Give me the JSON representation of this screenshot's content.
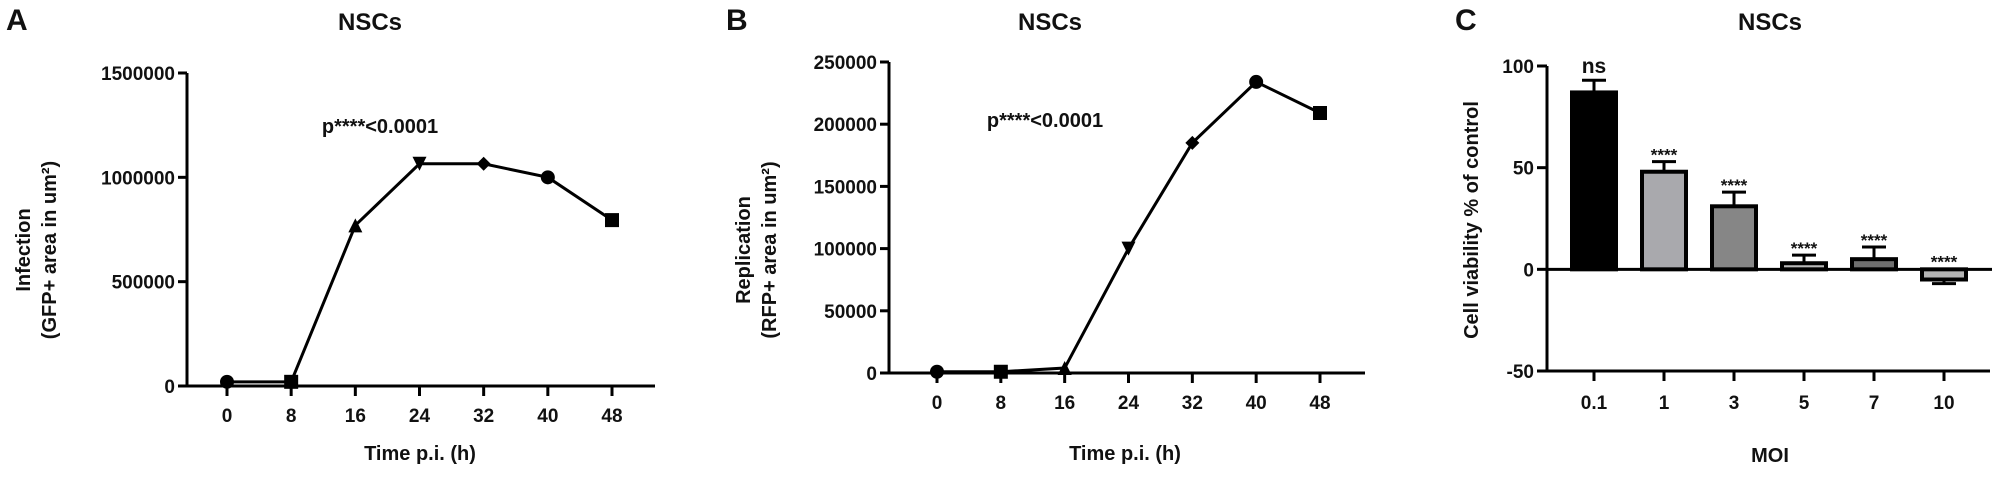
{
  "panels": [
    {
      "letter": "A",
      "title": "NSCs",
      "ylabel_line1": "Infection",
      "ylabel_line2": "(GFP+ area in um²)",
      "xlabel": "Time p.i. (h)",
      "annotation": "p****<0.0001",
      "yticks": [
        "0",
        "500000",
        "1000000",
        "1500000"
      ],
      "xticks": [
        "0",
        "8",
        "16",
        "24",
        "32",
        "40",
        "48"
      ]
    },
    {
      "letter": "B",
      "title": "NSCs",
      "ylabel_line1": "Replication",
      "ylabel_line2": "(RFP+ area in um²)",
      "xlabel": "Time p.i. (h)",
      "annotation": "p****<0.0001",
      "yticks": [
        "0",
        "50000",
        "100000",
        "150000",
        "200000",
        "250000"
      ],
      "xticks": [
        "0",
        "8",
        "16",
        "24",
        "32",
        "40",
        "48"
      ]
    },
    {
      "letter": "C",
      "title": "NSCs",
      "ylabel": "Cell viability % of control",
      "xlabel": "MOI",
      "yticks": [
        "-50",
        "0",
        "50",
        "100"
      ],
      "xticks": [
        "0.1",
        "1",
        "3",
        "5",
        "7",
        "10"
      ],
      "significance": [
        "ns",
        "****",
        "****",
        "****",
        "****",
        "****"
      ]
    }
  ],
  "chart_data": [
    {
      "type": "line",
      "title": "NSCs",
      "panel": "A",
      "xlabel": "Time p.i. (h)",
      "ylabel": "Infection (GFP+ area in um²)",
      "x": [
        0,
        8,
        16,
        24,
        32,
        40,
        48
      ],
      "series": [
        {
          "name": "Infection",
          "values": [
            20000,
            20000,
            770000,
            1065000,
            1065000,
            1000000,
            795000
          ],
          "markers": [
            "circle",
            "square",
            "triangle",
            "inverted-triangle",
            "diamond",
            "circle",
            "square"
          ]
        }
      ],
      "ylim": [
        0,
        1500000
      ],
      "annotations": [
        "p****<0.0001"
      ],
      "grid": false
    },
    {
      "type": "line",
      "title": "NSCs",
      "panel": "B",
      "xlabel": "Time p.i. (h)",
      "ylabel": "Replication (RFP+ area in um²)",
      "x": [
        0,
        8,
        16,
        24,
        32,
        40,
        48
      ],
      "series": [
        {
          "name": "Replication",
          "values": [
            1000,
            1000,
            4000,
            100000,
            185000,
            234000,
            209000
          ],
          "markers": [
            "circle",
            "square",
            "triangle",
            "inverted-triangle",
            "diamond",
            "circle",
            "square"
          ]
        }
      ],
      "ylim": [
        0,
        250000
      ],
      "annotations": [
        "p****<0.0001"
      ],
      "grid": false
    },
    {
      "type": "bar",
      "title": "NSCs",
      "panel": "C",
      "xlabel": "MOI",
      "ylabel": "Cell viability % of control",
      "categories": [
        "0.1",
        "1",
        "3",
        "5",
        "7",
        "10"
      ],
      "values": [
        87,
        48,
        31,
        3,
        5,
        -5
      ],
      "errors": [
        6,
        5,
        7,
        4,
        6,
        2
      ],
      "significance": [
        "ns",
        "****",
        "****",
        "****",
        "****",
        "****"
      ],
      "colors": [
        "#000000",
        "#a9a9ad",
        "#868686",
        "#b9b9b9",
        "#6f6f6f",
        "#b3b3b3"
      ],
      "ylim": [
        -50,
        100
      ],
      "grid": false
    }
  ]
}
